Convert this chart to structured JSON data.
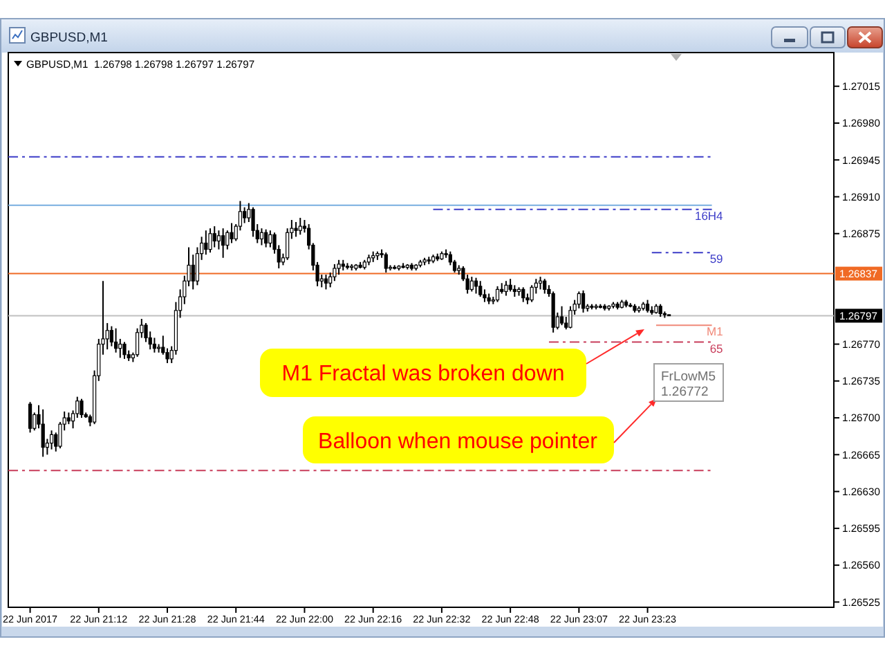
{
  "chart_data": {
    "type": "candlestick",
    "title": "GBPUSD,M1",
    "subtitle": "GBPUSD,M1  1.26798 1.26798 1.26797 1.26797",
    "color": "#000000",
    "categories": [
      "22 Jun 2017",
      null,
      null,
      null,
      null,
      null,
      null,
      null,
      null,
      null,
      null,
      null,
      null,
      null,
      null,
      null,
      "22 Jun 21:12",
      null,
      null,
      null,
      null,
      null,
      null,
      null,
      null,
      null,
      null,
      null,
      null,
      null,
      null,
      null,
      "22 Jun 21:28",
      null,
      null,
      null,
      null,
      null,
      null,
      null,
      null,
      null,
      null,
      null,
      null,
      null,
      null,
      null,
      "22 Jun 21:44",
      null,
      null,
      null,
      null,
      null,
      null,
      null,
      null,
      null,
      null,
      null,
      null,
      null,
      null,
      null,
      "22 Jun 22:00",
      null,
      null,
      null,
      null,
      null,
      null,
      null,
      null,
      null,
      null,
      null,
      null,
      null,
      null,
      null,
      "22 Jun 22:16",
      null,
      null,
      null,
      null,
      null,
      null,
      null,
      null,
      null,
      null,
      null,
      null,
      null,
      null,
      null,
      "22 Jun 22:32",
      null,
      null,
      null,
      null,
      null,
      null,
      null,
      null,
      null,
      null,
      null,
      null,
      null,
      null,
      null,
      "22 Jun 22:48",
      null,
      null,
      null,
      null,
      null,
      null,
      null,
      null,
      null,
      null,
      null,
      null,
      null,
      null,
      null,
      "22 Jun 23:07",
      null,
      null,
      null,
      null,
      null,
      null,
      null,
      null,
      null,
      null,
      null,
      null,
      null,
      null,
      null,
      "22 Jun 23:23",
      null,
      null,
      null,
      null,
      null,
      null,
      null,
      null,
      null,
      null,
      null,
      null,
      null,
      null,
      null
    ],
    "ohlc": [
      [
        1.26713,
        1.26715,
        1.26686,
        1.2669
      ],
      [
        1.2669,
        1.26705,
        1.26688,
        1.26703
      ],
      [
        1.26703,
        1.26712,
        1.2669,
        1.26694
      ],
      [
        1.26694,
        1.26708,
        1.26663,
        1.26672
      ],
      [
        1.26672,
        1.2668,
        1.26665,
        1.26676
      ],
      [
        1.26676,
        1.26688,
        1.2667,
        1.26684
      ],
      [
        1.26684,
        1.26686,
        1.26668,
        1.26673
      ],
      [
        1.26673,
        1.26696,
        1.26671,
        1.26694
      ],
      [
        1.26694,
        1.26706,
        1.26688,
        1.267
      ],
      [
        1.267,
        1.26705,
        1.26694,
        1.26697
      ],
      [
        1.26697,
        1.26707,
        1.2669,
        1.26704
      ],
      [
        1.26704,
        1.2672,
        1.267,
        1.26716
      ],
      [
        1.26716,
        1.26718,
        1.267,
        1.26703
      ],
      [
        1.26703,
        1.26705,
        1.267,
        1.26701
      ],
      [
        1.26701,
        1.26703,
        1.26692,
        1.26696
      ],
      [
        1.26696,
        1.26745,
        1.26694,
        1.2674
      ],
      [
        1.2674,
        1.26775,
        1.26735,
        1.2677
      ],
      [
        1.2677,
        1.2683,
        1.2676,
        1.26775
      ],
      [
        1.26775,
        1.2679,
        1.26765,
        1.26783
      ],
      [
        1.26783,
        1.26787,
        1.26768,
        1.26772
      ],
      [
        1.26772,
        1.26785,
        1.26762,
        1.26766
      ],
      [
        1.26766,
        1.26775,
        1.26757,
        1.2677
      ],
      [
        1.2677,
        1.26772,
        1.26756,
        1.2676
      ],
      [
        1.2676,
        1.26764,
        1.26754,
        1.26757
      ],
      [
        1.26757,
        1.26762,
        1.26753,
        1.2676
      ],
      [
        1.2676,
        1.26785,
        1.26758,
        1.26781
      ],
      [
        1.26781,
        1.26794,
        1.26776,
        1.26788
      ],
      [
        1.26788,
        1.2679,
        1.26772,
        1.26776
      ],
      [
        1.26776,
        1.26782,
        1.26765,
        1.2677
      ],
      [
        1.2677,
        1.26776,
        1.26762,
        1.26766
      ],
      [
        1.26766,
        1.2677,
        1.26762,
        1.26767
      ],
      [
        1.26767,
        1.26778,
        1.2676,
        1.26762
      ],
      [
        1.26762,
        1.26766,
        1.26752,
        1.26756
      ],
      [
        1.26756,
        1.26768,
        1.26752,
        1.26764
      ],
      [
        1.26764,
        1.2681,
        1.2676,
        1.26802
      ],
      [
        1.26802,
        1.26822,
        1.26795,
        1.26815
      ],
      [
        1.26815,
        1.26835,
        1.26808,
        1.2683
      ],
      [
        1.2683,
        1.26862,
        1.26825,
        1.26845
      ],
      [
        1.26845,
        1.26855,
        1.26822,
        1.2683
      ],
      [
        1.2683,
        1.26862,
        1.26826,
        1.26856
      ],
      [
        1.26856,
        1.26872,
        1.2685,
        1.26866
      ],
      [
        1.26866,
        1.26878,
        1.26855,
        1.2686
      ],
      [
        1.2686,
        1.2688,
        1.26857,
        1.26875
      ],
      [
        1.26875,
        1.26882,
        1.26862,
        1.26868
      ],
      [
        1.26868,
        1.26878,
        1.2686,
        1.26873
      ],
      [
        1.26873,
        1.2688,
        1.26852,
        1.26864
      ],
      [
        1.26864,
        1.26878,
        1.2686,
        1.26876
      ],
      [
        1.26876,
        1.26885,
        1.26866,
        1.2687
      ],
      [
        1.2687,
        1.26884,
        1.26868,
        1.26882
      ],
      [
        1.26882,
        1.26906,
        1.26878,
        1.26896
      ],
      [
        1.26896,
        1.269,
        1.26885,
        1.2689
      ],
      [
        1.2689,
        1.26904,
        1.26886,
        1.26898
      ],
      [
        1.26898,
        1.269,
        1.26872,
        1.26878
      ],
      [
        1.26878,
        1.26884,
        1.26866,
        1.2687
      ],
      [
        1.2687,
        1.2688,
        1.26864,
        1.26876
      ],
      [
        1.26876,
        1.26879,
        1.26862,
        1.26866
      ],
      [
        1.26866,
        1.26878,
        1.26862,
        1.26874
      ],
      [
        1.26874,
        1.26876,
        1.26856,
        1.2686
      ],
      [
        1.2686,
        1.26864,
        1.26842,
        1.26848
      ],
      [
        1.26848,
        1.26856,
        1.26845,
        1.26852
      ],
      [
        1.26852,
        1.2688,
        1.2685,
        1.26876
      ],
      [
        1.26876,
        1.26888,
        1.2687,
        1.2688
      ],
      [
        1.2688,
        1.26886,
        1.26872,
        1.26878
      ],
      [
        1.26878,
        1.2689,
        1.26874,
        1.26882
      ],
      [
        1.26882,
        1.26888,
        1.26876,
        1.2688
      ],
      [
        1.2688,
        1.26884,
        1.2686,
        1.26864
      ],
      [
        1.26864,
        1.26866,
        1.2684,
        1.26845
      ],
      [
        1.26845,
        1.26848,
        1.26825,
        1.2683
      ],
      [
        1.2683,
        1.26836,
        1.26824,
        1.26832
      ],
      [
        1.26832,
        1.26836,
        1.26822,
        1.26828
      ],
      [
        1.26828,
        1.26838,
        1.26824,
        1.26834
      ],
      [
        1.26834,
        1.26846,
        1.2683,
        1.26842
      ],
      [
        1.26842,
        1.2685,
        1.26836,
        1.26846
      ],
      [
        1.26846,
        1.2685,
        1.2684,
        1.26844
      ],
      [
        1.26844,
        1.26847,
        1.26841,
        1.26843
      ],
      [
        1.26843,
        1.26846,
        1.2684,
        1.26844
      ],
      [
        1.26842,
        1.26846,
        1.2684,
        1.26845
      ],
      [
        1.26845,
        1.26848,
        1.26842,
        1.26843
      ],
      [
        1.26843,
        1.2685,
        1.26841,
        1.26848
      ],
      [
        1.26848,
        1.26855,
        1.26845,
        1.26852
      ],
      [
        1.26852,
        1.26858,
        1.26848,
        1.26854
      ],
      [
        1.26854,
        1.26858,
        1.2685,
        1.26856
      ],
      [
        1.26856,
        1.2686,
        1.26852,
        1.26855
      ],
      [
        1.26855,
        1.26857,
        1.26838,
        1.26842
      ],
      [
        1.26842,
        1.26845,
        1.2684,
        1.26843
      ],
      [
        1.26843,
        1.26845,
        1.26841,
        1.26842
      ],
      [
        1.26842,
        1.26845,
        1.2684,
        1.26844
      ],
      [
        1.26844,
        1.26847,
        1.26842,
        1.26843
      ],
      [
        1.26843,
        1.26846,
        1.26841,
        1.26845
      ],
      [
        1.26845,
        1.26847,
        1.2684,
        1.26842
      ],
      [
        1.26842,
        1.26846,
        1.2684,
        1.26845
      ],
      [
        1.26845,
        1.2685,
        1.26843,
        1.26848
      ],
      [
        1.26848,
        1.26852,
        1.26845,
        1.2685
      ],
      [
        1.2685,
        1.26853,
        1.26846,
        1.26849
      ],
      [
        1.26849,
        1.26855,
        1.26847,
        1.26853
      ],
      [
        1.26853,
        1.26856,
        1.26849,
        1.26851
      ],
      [
        1.26851,
        1.26858,
        1.2685,
        1.26856
      ],
      [
        1.26856,
        1.2686,
        1.26852,
        1.26855
      ],
      [
        1.26855,
        1.26858,
        1.26845,
        1.26848
      ],
      [
        1.26848,
        1.2685,
        1.26838,
        1.2684
      ],
      [
        1.2684,
        1.26845,
        1.26836,
        1.26842
      ],
      [
        1.26842,
        1.26844,
        1.2683,
        1.26832
      ],
      [
        1.26832,
        1.26836,
        1.26818,
        1.26822
      ],
      [
        1.26822,
        1.26834,
        1.2682,
        1.2683
      ],
      [
        1.2683,
        1.26833,
        1.26818,
        1.26825
      ],
      [
        1.26825,
        1.2683,
        1.26815,
        1.26817
      ],
      [
        1.26817,
        1.26822,
        1.2681,
        1.26814
      ],
      [
        1.26814,
        1.26818,
        1.26808,
        1.26811
      ],
      [
        1.26811,
        1.26815,
        1.26808,
        1.26812
      ],
      [
        1.26812,
        1.26825,
        1.2681,
        1.26822
      ],
      [
        1.26822,
        1.26828,
        1.26818,
        1.2682
      ],
      [
        1.2682,
        1.2683,
        1.26816,
        1.26826
      ],
      [
        1.26826,
        1.26832,
        1.2682,
        1.26822
      ],
      [
        1.26822,
        1.26826,
        1.26815,
        1.2682
      ],
      [
        1.2682,
        1.26824,
        1.26816,
        1.26822
      ],
      [
        1.26822,
        1.26824,
        1.2681,
        1.26814
      ],
      [
        1.26814,
        1.26818,
        1.26808,
        1.26812
      ],
      [
        1.26812,
        1.26826,
        1.2681,
        1.26824
      ],
      [
        1.26824,
        1.26832,
        1.26818,
        1.26828
      ],
      [
        1.26828,
        1.26834,
        1.26822,
        1.2683
      ],
      [
        1.2683,
        1.26832,
        1.26818,
        1.26822
      ],
      [
        1.26822,
        1.26826,
        1.26815,
        1.26818
      ],
      [
        1.26818,
        1.2682,
        1.26781,
        1.26786
      ],
      [
        1.26786,
        1.268,
        1.26784,
        1.26796
      ],
      [
        1.26796,
        1.26806,
        1.26788,
        1.2679
      ],
      [
        1.2679,
        1.26796,
        1.26784,
        1.26786
      ],
      [
        1.26786,
        1.26806,
        1.26785,
        1.26802
      ],
      [
        1.26802,
        1.26812,
        1.26798,
        1.26808
      ],
      [
        1.26808,
        1.2682,
        1.26804,
        1.26818
      ],
      [
        1.26818,
        1.26821,
        1.268,
        1.26804
      ],
      [
        1.26804,
        1.26808,
        1.26801,
        1.26806
      ],
      [
        1.26806,
        1.26808,
        1.26803,
        1.26805
      ],
      [
        1.26805,
        1.26808,
        1.26803,
        1.26806
      ],
      [
        1.26806,
        1.26808,
        1.26804,
        1.26805
      ],
      [
        1.26806,
        1.26808,
        1.26802,
        1.26804
      ],
      [
        1.26804,
        1.26807,
        1.26802,
        1.26806
      ],
      [
        1.26806,
        1.2681,
        1.26804,
        1.26808
      ],
      [
        1.26808,
        1.2681,
        1.26803,
        1.26805
      ],
      [
        1.26805,
        1.26812,
        1.26804,
        1.2681
      ],
      [
        1.2681,
        1.26812,
        1.26805,
        1.26807
      ],
      [
        1.26807,
        1.26809,
        1.26805,
        1.26806
      ],
      [
        1.26806,
        1.26808,
        1.268,
        1.26802
      ],
      [
        1.26802,
        1.26806,
        1.268,
        1.26804
      ],
      [
        1.26804,
        1.2681,
        1.26802,
        1.26808
      ],
      [
        1.26808,
        1.26812,
        1.268,
        1.26802
      ],
      [
        1.26802,
        1.26806,
        1.26798,
        1.268
      ],
      [
        1.268,
        1.26808,
        1.26799,
        1.26806
      ],
      [
        1.26806,
        1.26808,
        1.26796,
        1.26799
      ],
      [
        1.26799,
        1.26801,
        1.26795,
        1.26798
      ],
      [
        1.26798,
        1.26798,
        1.26797,
        1.26797
      ],
      null,
      null,
      null,
      null,
      null,
      null,
      null,
      null,
      null,
      null
    ],
    "ylim": [
      1.2652,
      1.27047
    ],
    "yticks": [
      1.27015,
      {
        "value": 1.2698,
        "label": "1.26980"
      },
      1.26945,
      {
        "value": 1.2691,
        "label": "1.26910"
      },
      1.26875,
      {
        "value": 1.2677,
        "label": "1.26770"
      },
      1.26735,
      {
        "value": 1.267,
        "label": "1.26700"
      },
      1.26665,
      {
        "value": 1.2663,
        "label": "1.26630"
      },
      1.26595,
      {
        "value": 1.2656,
        "label": "1.26560"
      },
      1.26525
    ],
    "series": [
      {
        "type": "line",
        "color": "#3c3cc8",
        "line_style": "dashed",
        "values": [
          1.26948,
          1.26948,
          1.26948,
          1.26948,
          1.26948,
          1.26948,
          1.26948,
          1.26948,
          1.26948,
          1.26948,
          1.26948,
          1.26948,
          1.26948,
          1.26948,
          1.26948,
          1.26948,
          1.26948,
          1.26948,
          1.26948,
          1.26948,
          1.26948,
          1.26948,
          1.26948,
          1.26948,
          1.26948,
          1.26948,
          1.26948,
          1.26948,
          1.26948,
          1.26948,
          1.26948,
          1.26948,
          1.26948,
          1.26948,
          1.26948,
          1.26948,
          1.26948,
          1.26948,
          1.26948,
          1.26948,
          1.26948,
          1.26948,
          1.26948,
          1.26948,
          1.26948,
          1.26948,
          1.26948,
          1.26948,
          1.26948,
          1.26948,
          1.26948,
          1.26948,
          1.26948,
          1.26948,
          1.26948,
          1.26948,
          1.26948,
          1.26948,
          1.26948,
          1.26948,
          1.26948,
          1.26948,
          1.26948,
          1.26948,
          1.26948,
          1.26948,
          1.26948,
          1.26948,
          1.26948,
          1.26948,
          1.26948,
          1.26948,
          1.26948,
          1.26948,
          1.26948,
          1.26948,
          1.26948,
          1.26948,
          1.26948,
          1.26948,
          1.26948,
          1.26948,
          1.26948,
          1.26948,
          1.26948,
          1.26948,
          1.26948,
          1.26948,
          1.26948,
          1.26948,
          1.26948,
          1.26948,
          1.26948,
          1.26948,
          1.26948,
          1.26948,
          1.26948,
          1.26948,
          1.26948,
          1.26948,
          1.26948,
          1.26948,
          1.26948,
          1.26948,
          1.26948,
          1.26948,
          1.26948,
          1.26948,
          1.26948,
          1.26948,
          1.26948,
          1.26948,
          1.26948,
          1.26948,
          1.26948,
          1.26948,
          1.26948,
          1.26948,
          1.26948,
          1.26948,
          1.26948,
          1.26948,
          1.26948,
          1.26948,
          1.26948,
          1.26948,
          1.26948,
          1.26948,
          1.26948,
          1.26948,
          1.26948,
          1.26948,
          1.26948,
          1.26948,
          1.26948,
          1.26948,
          1.26948,
          1.26948,
          1.26948,
          1.26948,
          1.26948,
          1.26948,
          1.26948,
          1.26948,
          1.26948,
          1.26948,
          1.26948,
          1.26948,
          1.26948,
          1.26948,
          1.26948,
          1.26948,
          1.26948,
          1.26948,
          1.26948,
          1.26948,
          1.26948,
          1.26948,
          1.26948,
          1.26948
        ]
      },
      {
        "type": "line",
        "color": "#78aee0",
        "values": [
          1.26902,
          1.26902,
          1.26902,
          1.26902,
          1.26902,
          1.26902,
          1.26902,
          1.26902,
          1.26902,
          1.26902,
          1.26902,
          1.26902,
          1.26902,
          1.26902,
          1.26902,
          1.26902,
          1.26902,
          1.26902,
          1.26902,
          1.26902,
          1.26902,
          1.26902,
          1.26902,
          1.26902,
          1.26902,
          1.26902,
          1.26902,
          1.26902,
          1.26902,
          1.26902,
          1.26902,
          1.26902,
          1.26902,
          1.26902,
          1.26902,
          1.26902,
          1.26902,
          1.26902,
          1.26902,
          1.26902,
          1.26902,
          1.26902,
          1.26902,
          1.26902,
          1.26902,
          1.26902,
          1.26902,
          1.26902,
          1.26902,
          1.26902,
          1.26902,
          1.26902,
          1.26902,
          1.26902,
          1.26902,
          1.26902,
          1.26902,
          1.26902,
          1.26902,
          1.26902,
          1.26902,
          1.26902,
          1.26902,
          1.26902,
          1.26902,
          1.26902,
          1.26902,
          1.26902,
          1.26902,
          1.26902,
          1.26902,
          1.26902,
          1.26902,
          1.26902,
          1.26902,
          1.26902,
          1.26902,
          1.26902,
          1.26902,
          1.26902,
          1.26902,
          1.26902,
          1.26902,
          1.26902,
          1.26902,
          1.26902,
          1.26902,
          1.26902,
          1.26902,
          1.26902,
          1.26902,
          1.26902,
          1.26902,
          1.26902,
          1.26902,
          1.26902,
          1.26902,
          1.26902,
          1.26902,
          1.26902,
          1.26902,
          1.26902,
          1.26902,
          1.26902,
          1.26902,
          1.26902,
          1.26902,
          1.26902,
          1.26902,
          1.26902,
          1.26902,
          1.26902,
          1.26902,
          1.26902,
          1.26902,
          1.26902,
          1.26902,
          1.26902,
          1.26902,
          1.26902,
          1.26902,
          1.26902,
          1.26902,
          1.26902,
          1.26902,
          1.26902,
          1.26902,
          1.26902,
          1.26902,
          1.26902,
          1.26902,
          1.26902,
          1.26902,
          1.26902,
          1.26902,
          1.26902,
          1.26902,
          1.26902,
          1.26902,
          1.26902,
          1.26902,
          1.26902,
          1.26902,
          1.26902,
          1.26902,
          1.26902,
          1.26902,
          1.26902,
          1.26902,
          1.26902,
          1.26902,
          1.26902,
          1.26902,
          1.26902,
          1.26902,
          1.26902,
          1.26902,
          1.26902,
          1.26902,
          1.26902
        ]
      },
      {
        "type": "line",
        "name": "16H4",
        "color": "#3c3cc8",
        "line_style": "dashed",
        "values": [
          null,
          null,
          null,
          null,
          null,
          null,
          null,
          null,
          null,
          null,
          null,
          null,
          null,
          null,
          null,
          null,
          null,
          null,
          null,
          null,
          null,
          null,
          null,
          null,
          null,
          null,
          null,
          null,
          null,
          null,
          null,
          null,
          null,
          null,
          null,
          null,
          null,
          null,
          null,
          null,
          null,
          null,
          null,
          null,
          null,
          null,
          null,
          null,
          null,
          null,
          null,
          null,
          null,
          null,
          null,
          null,
          null,
          null,
          null,
          null,
          null,
          null,
          null,
          null,
          null,
          null,
          null,
          null,
          null,
          null,
          null,
          null,
          null,
          null,
          null,
          null,
          null,
          null,
          null,
          null,
          null,
          null,
          null,
          null,
          null,
          null,
          null,
          null,
          null,
          null,
          null,
          null,
          null,
          null,
          1.26898,
          1.26898,
          1.26898,
          1.26898,
          1.26898,
          1.26898,
          1.26898,
          1.26898,
          1.26898,
          1.26898,
          1.26898,
          1.26898,
          1.26898,
          1.26898,
          1.26898,
          1.26898,
          1.26898,
          1.26898,
          1.26898,
          1.26898,
          1.26898,
          1.26898,
          1.26898,
          1.26898,
          1.26898,
          1.26898,
          1.26898,
          1.26898,
          1.26898,
          1.26898,
          1.26898,
          1.26898,
          1.26898,
          1.26898,
          1.26898,
          1.26898,
          1.26898,
          1.26898,
          1.26898,
          1.26898,
          1.26898,
          1.26898,
          1.26898,
          1.26898,
          1.26898,
          1.26898,
          1.26898,
          1.26898,
          1.26898,
          1.26898,
          1.26898,
          1.26898,
          1.26898,
          1.26898,
          1.26898,
          1.26898,
          1.26898,
          1.26898,
          1.26898,
          1.26898,
          1.26898,
          1.26898,
          1.26898,
          1.26898,
          1.26898,
          1.26898
        ]
      },
      {
        "type": "line",
        "name": "59",
        "color": "#3c3cc8",
        "line_style": "dashed",
        "values": [
          null,
          null,
          null,
          null,
          null,
          null,
          null,
          null,
          null,
          null,
          null,
          null,
          null,
          null,
          null,
          null,
          null,
          null,
          null,
          null,
          null,
          null,
          null,
          null,
          null,
          null,
          null,
          null,
          null,
          null,
          null,
          null,
          null,
          null,
          null,
          null,
          null,
          null,
          null,
          null,
          null,
          null,
          null,
          null,
          null,
          null,
          null,
          null,
          null,
          null,
          null,
          null,
          null,
          null,
          null,
          null,
          null,
          null,
          null,
          null,
          null,
          null,
          null,
          null,
          null,
          null,
          null,
          null,
          null,
          null,
          null,
          null,
          null,
          null,
          null,
          null,
          null,
          null,
          null,
          null,
          null,
          null,
          null,
          null,
          null,
          null,
          null,
          null,
          null,
          null,
          null,
          null,
          null,
          null,
          null,
          null,
          null,
          null,
          null,
          null,
          null,
          null,
          null,
          null,
          null,
          null,
          null,
          null,
          null,
          null,
          null,
          null,
          null,
          null,
          null,
          null,
          null,
          null,
          null,
          null,
          null,
          null,
          null,
          null,
          null,
          null,
          null,
          null,
          null,
          null,
          null,
          null,
          null,
          null,
          null,
          null,
          null,
          null,
          null,
          null,
          null,
          null,
          null,
          null,
          null,
          1.26857,
          1.26857,
          1.26857,
          1.26857,
          1.26857,
          1.26857,
          1.26857,
          1.26857,
          1.26857,
          1.26857,
          1.26857,
          1.26857,
          1.26857,
          1.26857,
          1.26857
        ]
      },
      {
        "type": "line",
        "name": "M1",
        "color": "#f08878",
        "values": [
          null,
          null,
          null,
          null,
          null,
          null,
          null,
          null,
          null,
          null,
          null,
          null,
          null,
          null,
          null,
          null,
          null,
          null,
          null,
          null,
          null,
          null,
          null,
          null,
          null,
          null,
          null,
          null,
          null,
          null,
          null,
          null,
          null,
          null,
          null,
          null,
          null,
          null,
          null,
          null,
          null,
          null,
          null,
          null,
          null,
          null,
          null,
          null,
          null,
          null,
          null,
          null,
          null,
          null,
          null,
          null,
          null,
          null,
          null,
          null,
          null,
          null,
          null,
          null,
          null,
          null,
          null,
          null,
          null,
          null,
          null,
          null,
          null,
          null,
          null,
          null,
          null,
          null,
          null,
          null,
          null,
          null,
          null,
          null,
          null,
          null,
          null,
          null,
          null,
          null,
          null,
          null,
          null,
          null,
          null,
          null,
          null,
          null,
          null,
          null,
          null,
          null,
          null,
          null,
          null,
          null,
          null,
          null,
          null,
          null,
          null,
          null,
          null,
          null,
          null,
          null,
          null,
          null,
          null,
          null,
          null,
          null,
          null,
          null,
          null,
          null,
          null,
          null,
          null,
          null,
          null,
          null,
          null,
          null,
          null,
          null,
          null,
          null,
          null,
          null,
          null,
          null,
          null,
          null,
          null,
          null,
          1.26788,
          1.26788,
          1.26788,
          1.26788,
          1.26788,
          1.26788,
          1.26788,
          1.26788,
          1.26788,
          1.26788,
          1.26788,
          1.26788,
          1.26788,
          1.26788
        ]
      },
      {
        "type": "line",
        "name": "65",
        "color": "#c83c5a",
        "line_style": "dashed",
        "values": [
          null,
          null,
          null,
          null,
          null,
          null,
          null,
          null,
          null,
          null,
          null,
          null,
          null,
          null,
          null,
          null,
          null,
          null,
          null,
          null,
          null,
          null,
          null,
          null,
          null,
          null,
          null,
          null,
          null,
          null,
          null,
          null,
          null,
          null,
          null,
          null,
          null,
          null,
          null,
          null,
          null,
          null,
          null,
          null,
          null,
          null,
          null,
          null,
          null,
          null,
          null,
          null,
          null,
          null,
          null,
          null,
          null,
          null,
          null,
          null,
          null,
          null,
          null,
          null,
          null,
          null,
          null,
          null,
          null,
          null,
          null,
          null,
          null,
          null,
          null,
          null,
          null,
          null,
          null,
          null,
          null,
          null,
          null,
          null,
          null,
          null,
          null,
          null,
          null,
          null,
          null,
          null,
          null,
          null,
          null,
          null,
          null,
          null,
          null,
          null,
          null,
          null,
          null,
          null,
          null,
          null,
          null,
          null,
          null,
          null,
          null,
          null,
          null,
          null,
          null,
          null,
          null,
          null,
          null,
          null,
          null,
          1.26772,
          1.26772,
          1.26772,
          1.26772,
          1.26772,
          1.26772,
          1.26772,
          1.26772,
          1.26772,
          1.26772,
          1.26772,
          1.26772,
          1.26772,
          1.26772,
          1.26772,
          1.26772,
          1.26772,
          1.26772,
          1.26772,
          1.26772,
          1.26772,
          1.26772,
          1.26772,
          1.26772,
          1.26772,
          1.26772,
          1.26772,
          1.26772,
          1.26772,
          1.26772,
          1.26772,
          1.26772,
          1.26772,
          1.26772,
          1.26772,
          1.26772,
          1.26772,
          1.26772,
          1.26772
        ]
      },
      {
        "type": "line",
        "color": "#c83c5a",
        "line_style": "dashed",
        "values": [
          1.2665,
          1.2665,
          1.2665,
          1.2665,
          1.2665,
          1.2665,
          1.2665,
          1.2665,
          1.2665,
          1.2665,
          1.2665,
          1.2665,
          1.2665,
          1.2665,
          1.2665,
          1.2665,
          1.2665,
          1.2665,
          1.2665,
          1.2665,
          1.2665,
          1.2665,
          1.2665,
          1.2665,
          1.2665,
          1.2665,
          1.2665,
          1.2665,
          1.2665,
          1.2665,
          1.2665,
          1.2665,
          1.2665,
          1.2665,
          1.2665,
          1.2665,
          1.2665,
          1.2665,
          1.2665,
          1.2665,
          1.2665,
          1.2665,
          1.2665,
          1.2665,
          1.2665,
          1.2665,
          1.2665,
          1.2665,
          1.2665,
          1.2665,
          1.2665,
          1.2665,
          1.2665,
          1.2665,
          1.2665,
          1.2665,
          1.2665,
          1.2665,
          1.2665,
          1.2665,
          1.2665,
          1.2665,
          1.2665,
          1.2665,
          1.2665,
          1.2665,
          1.2665,
          1.2665,
          1.2665,
          1.2665,
          1.2665,
          1.2665,
          1.2665,
          1.2665,
          1.2665,
          1.2665,
          1.2665,
          1.2665,
          1.2665,
          1.2665,
          1.2665,
          1.2665,
          1.2665,
          1.2665,
          1.2665,
          1.2665,
          1.2665,
          1.2665,
          1.2665,
          1.2665,
          1.2665,
          1.2665,
          1.2665,
          1.2665,
          1.2665,
          1.2665,
          1.2665,
          1.2665,
          1.2665,
          1.2665,
          1.2665,
          1.2665,
          1.2665,
          1.2665,
          1.2665,
          1.2665,
          1.2665,
          1.2665,
          1.2665,
          1.2665,
          1.2665,
          1.2665,
          1.2665,
          1.2665,
          1.2665,
          1.2665,
          1.2665,
          1.2665,
          1.2665,
          1.2665,
          1.2665,
          1.2665,
          1.2665,
          1.2665,
          1.2665,
          1.2665,
          1.2665,
          1.2665,
          1.2665,
          1.2665,
          1.2665,
          1.2665,
          1.2665,
          1.2665,
          1.2665,
          1.2665,
          1.2665,
          1.2665,
          1.2665,
          1.2665,
          1.2665,
          1.2665,
          1.2665,
          1.2665,
          1.2665,
          1.2665,
          1.2665,
          1.2665,
          1.2665,
          1.2665,
          1.2665,
          1.2665,
          1.2665,
          1.2665,
          1.2665,
          1.2665,
          1.2665,
          1.2665,
          1.2665,
          1.2665
        ]
      }
    ],
    "ref_lines": [
      {
        "axis": "y",
        "value": 1.26837,
        "label": "1.26837",
        "color": "#f06a24"
      },
      {
        "axis": "y",
        "value": 1.26797,
        "label": "1.26797",
        "color": "#c0c0c0"
      }
    ],
    "annotations": [
      "M1 Fractal was broken down",
      "Balloon when mouse pointer",
      "FrLowM5\n1.26772"
    ]
  }
}
